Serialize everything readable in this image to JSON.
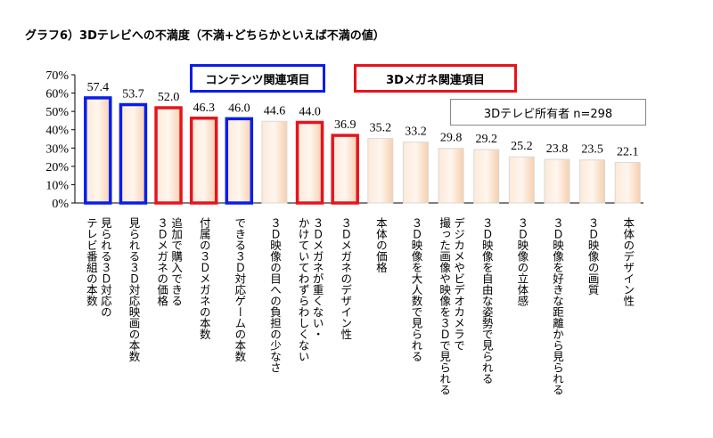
{
  "chart_data": {
    "type": "bar",
    "title": "グラフ6）3Dテレビへの不満度（不満+どちらかといえば不満の値）",
    "ylim": [
      0,
      70
    ],
    "yticks": [
      "0%",
      "10%",
      "20%",
      "30%",
      "40%",
      "50%",
      "60%",
      "70%"
    ],
    "categories": [
      "見られる３Ｄ対応の\nテレビ番組の本数",
      "見られる３Ｄ対応映画の本数",
      "追加で購入できる\n３Ｄメガネの価格",
      "付属の３Ｄメガネの本数",
      "できる３Ｄ対応ゲームの本数",
      "３Ｄ映像の目への負担の少なさ",
      "３Ｄメガネが重くない・\nかけていてわずらわしくない",
      "３Ｄメガネのデザイン性",
      "本体の価格",
      "３Ｄ映像を大人数で見られる",
      "デジカメやビデオカメラで\n撮った画像や映像を３Ｄで見られる",
      "３Ｄ映像を自由な姿勢で見られる",
      "３Ｄ映像の立体感",
      "３Ｄ映像を好きな距離から見られる",
      "３Ｄ映像の画質",
      "本体のデザイン性"
    ],
    "values": [
      57.4,
      53.7,
      52.0,
      46.3,
      46.0,
      44.6,
      44.0,
      36.9,
      35.2,
      33.2,
      29.8,
      29.2,
      25.2,
      23.8,
      23.5,
      22.1
    ],
    "groups": [
      "content",
      "content",
      "glasses",
      "glasses",
      "content",
      "none",
      "glasses",
      "glasses",
      "none",
      "none",
      "none",
      "none",
      "none",
      "none",
      "none",
      "none"
    ],
    "legend": {
      "content": "コンテンツ関連項目",
      "glasses": "3Dメガネ関連項目"
    },
    "note": "3Dテレビ所有者 n=298",
    "colors": {
      "content": "#0a1ee6",
      "glasses": "#e6141e",
      "fill": "#fbe3cf",
      "none": "#d9d9d9"
    }
  }
}
